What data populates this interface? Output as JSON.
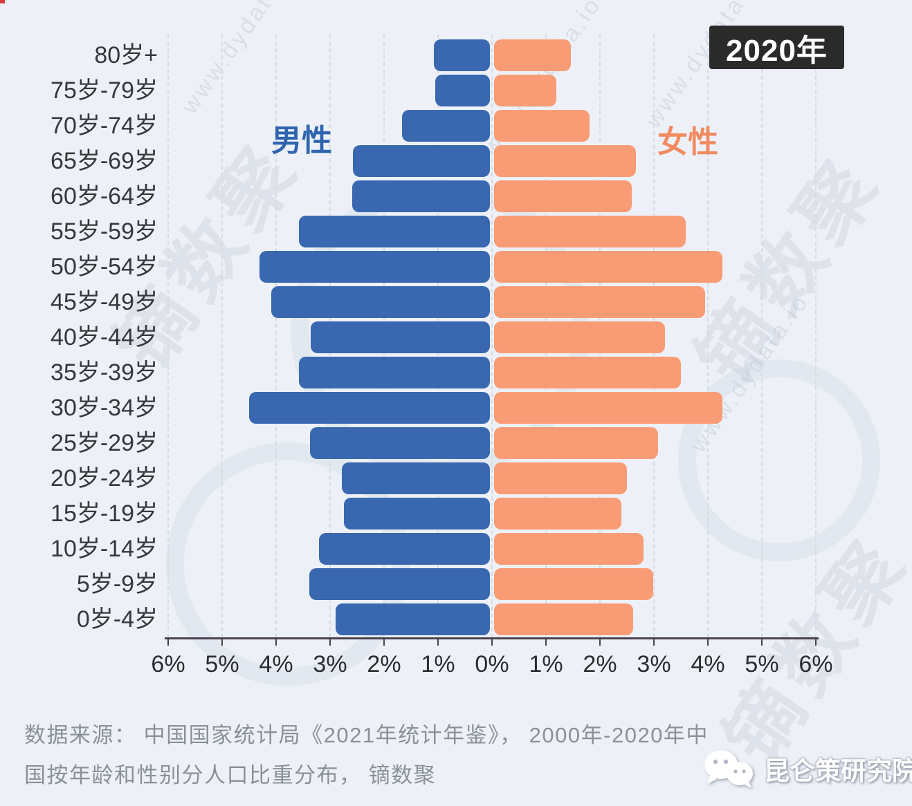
{
  "badge": {
    "year_label": "2020年"
  },
  "legend": {
    "male_label": "男性",
    "female_label": "女性"
  },
  "axis": {
    "tick_labels": [
      "6%",
      "5%",
      "4%",
      "3%",
      "2%",
      "1%",
      "0%",
      "1%",
      "2%",
      "3%",
      "4%",
      "5%",
      "6%"
    ],
    "unit": "%",
    "max_percent": 6
  },
  "chart_data": {
    "type": "bar",
    "subtype": "population-pyramid",
    "title": "2020年",
    "unit": "percent of total population",
    "categories": [
      "80岁+",
      "75岁-79岁",
      "70岁-74岁",
      "65岁-69岁",
      "60岁-64岁",
      "55岁-59岁",
      "50岁-54岁",
      "45岁-49岁",
      "40岁-44岁",
      "35岁-39岁",
      "30岁-34岁",
      "25岁-29岁",
      "20岁-24岁",
      "15岁-19岁",
      "10岁-14岁",
      "5岁-9岁",
      "0岁-4岁"
    ],
    "series": [
      {
        "name": "男性",
        "side": "left",
        "color": "#3968b0",
        "values": [
          1.04,
          1.01,
          1.63,
          2.54,
          2.55,
          3.54,
          4.27,
          4.05,
          3.32,
          3.54,
          4.46,
          3.33,
          2.74,
          2.7,
          3.17,
          3.35,
          2.86
        ]
      },
      {
        "name": "女性",
        "side": "right",
        "color": "#f99c75",
        "values": [
          1.42,
          1.15,
          1.77,
          2.63,
          2.55,
          3.55,
          4.23,
          3.91,
          3.17,
          3.46,
          4.23,
          3.04,
          2.46,
          2.36,
          2.77,
          2.95,
          2.58
        ]
      }
    ],
    "xlim": [
      -6,
      6
    ],
    "grid": "vertical dashed lines every 1%",
    "legend_position": "inside-top"
  },
  "source": {
    "line1": "数据来源： 中国国家统计局《2021年统计年鉴》， 2000年-2020年中",
    "line2": "国按年龄和性别分人口比重分布， 镝数聚"
  },
  "logo": {
    "publisher": "昆仑策研究院",
    "icon": "wechat-icon"
  },
  "watermarks": {
    "site": "www.dydata.io",
    "brand": "镝数聚"
  },
  "colors": {
    "background": "#edf1f7",
    "male": "#3968b0",
    "female": "#f99c75",
    "male_label": "#2f64af",
    "female_label": "#f28a60",
    "badge_bg": "#2a2a2b",
    "axis": "#47424e",
    "text": "#37373b",
    "source_text": "#8a9099"
  }
}
